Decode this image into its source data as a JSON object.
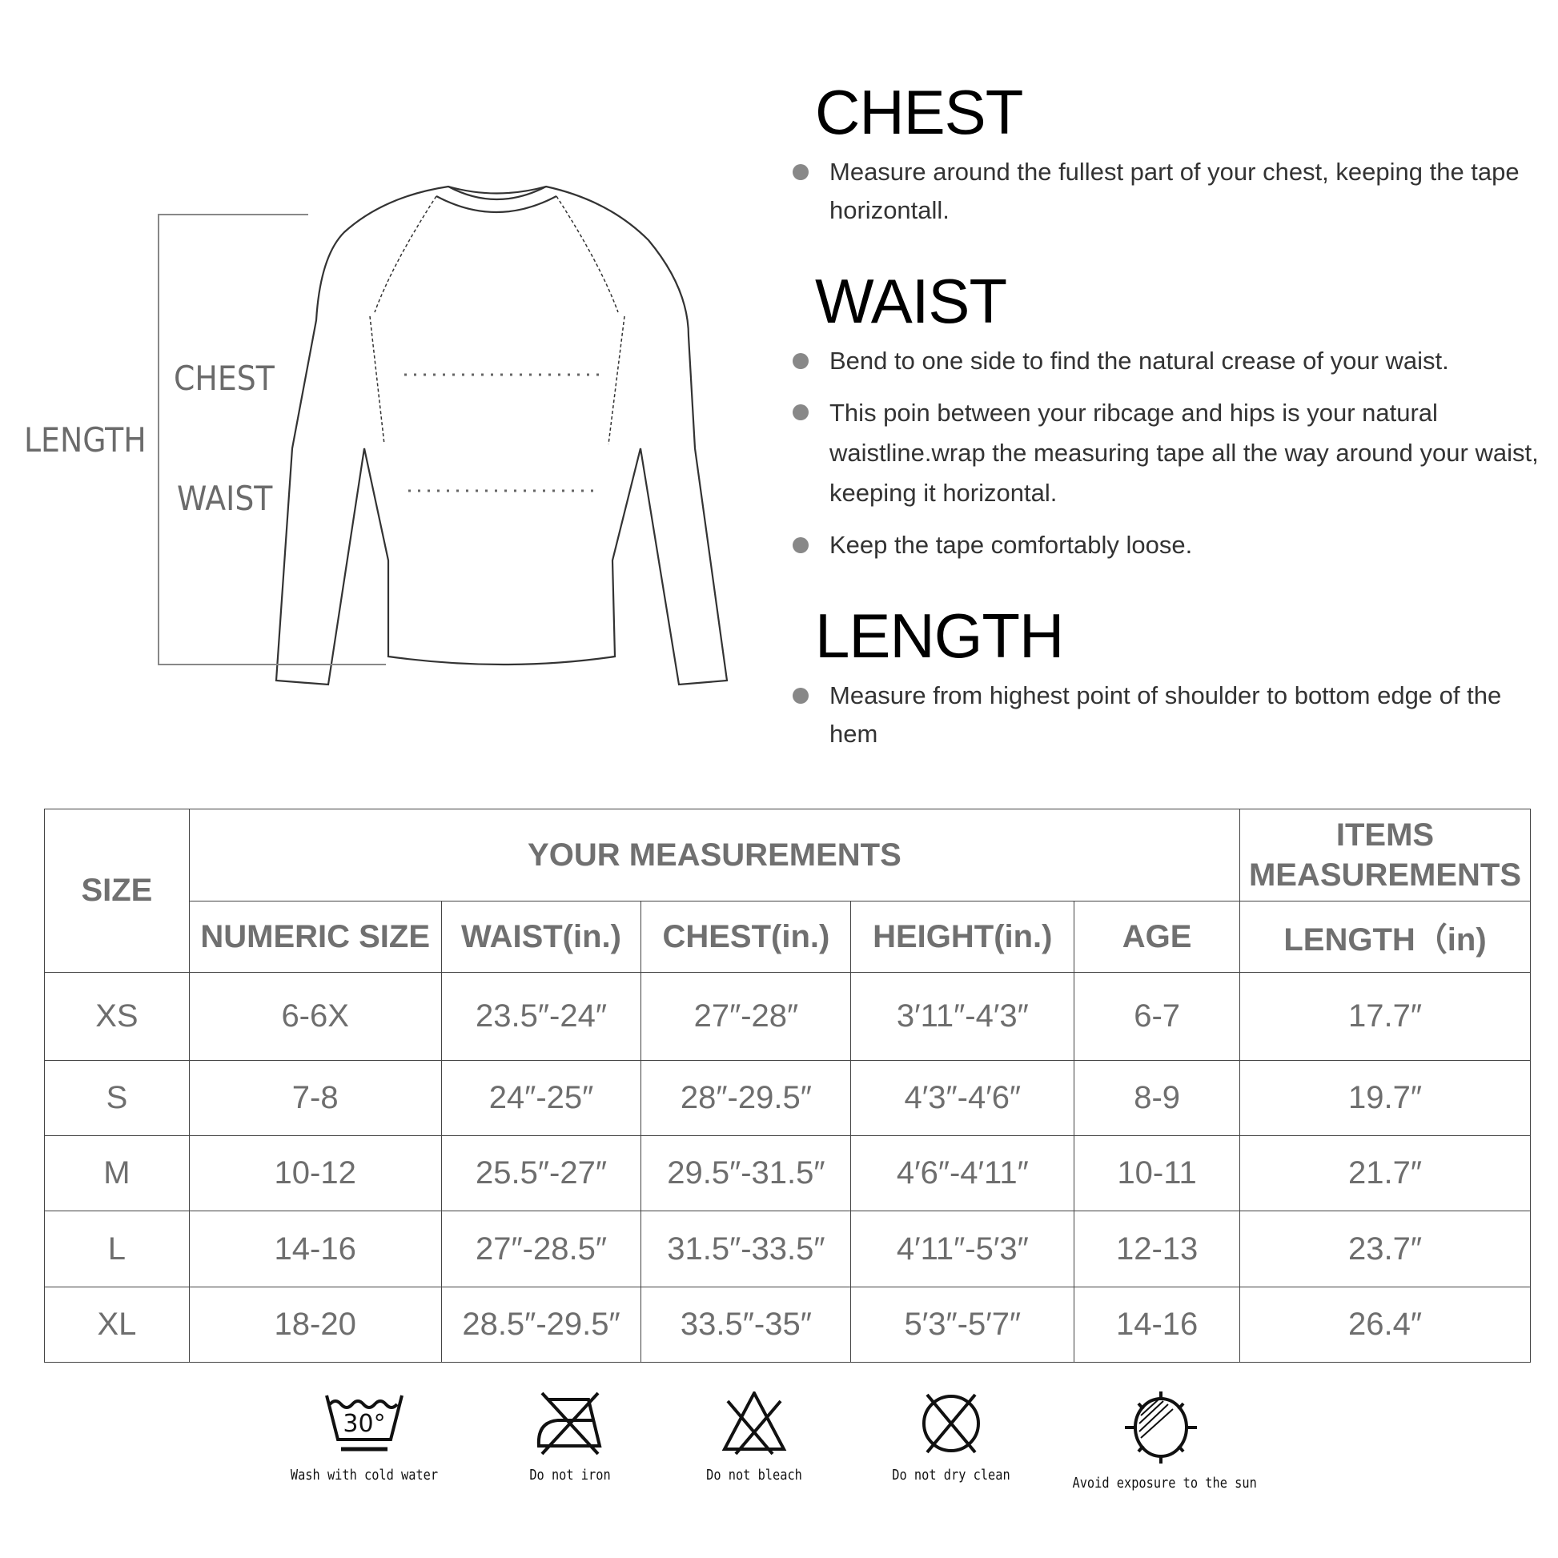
{
  "diagram": {
    "length_label": "LENGTH",
    "chest_label": "CHEST",
    "waist_label": "WAIST"
  },
  "sections": [
    {
      "title": "CHEST",
      "bullets": [
        "Measure around the fullest part of your chest, keeping the tape horizontall."
      ]
    },
    {
      "title": "WAIST",
      "bullets": [
        "Bend to one side to find the natural crease of your waist.",
        "This poin between your ribcage and hips is your natural waistline.wrap the measuring tape all the way around your waist, keeping it horizontal.",
        "Keep the tape comfortably loose."
      ]
    },
    {
      "title": "LENGTH",
      "bullets": [
        "Measure from highest point of shoulder to bottom edge of the hem"
      ]
    }
  ],
  "table": {
    "size_header": "SIZE",
    "group1": "YOUR MEASUREMENTS",
    "group2": "ITEMS MEASUREMENTS",
    "columns": [
      "NUMERIC SIZE",
      "WAIST(in.)",
      "CHEST(in.)",
      "HEIGHT(in.)",
      "AGE",
      "LENGTH（in)"
    ],
    "rows": [
      [
        "XS",
        "6-6X",
        "23.5″-24″",
        "27″-28″",
        "3′11″-4′3″",
        "6-7",
        "17.7″"
      ],
      [
        "S",
        "7-8",
        "24″-25″",
        "28″-29.5″",
        "4′3″-4′6″",
        "8-9",
        "19.7″"
      ],
      [
        "M",
        "10-12",
        "25.5″-27″",
        "29.5″-31.5″",
        "4′6″-4′11″",
        "10-11",
        "21.7″"
      ],
      [
        "L",
        "14-16",
        "27″-28.5″",
        "31.5″-33.5″",
        "4′11″-5′3″",
        "12-13",
        "23.7″"
      ],
      [
        "XL",
        "18-20",
        "28.5″-29.5″",
        "33.5″-35″",
        "5′3″-5′7″",
        "14-16",
        "26.4″"
      ]
    ]
  },
  "care": [
    {
      "icon": "wash-30-icon",
      "label": "Wash with cold water",
      "temp": "30°"
    },
    {
      "icon": "no-iron-icon",
      "label": "Do not iron"
    },
    {
      "icon": "no-bleach-icon",
      "label": "Do not bleach"
    },
    {
      "icon": "no-dry-clean-icon",
      "label": "Do not dry clean"
    },
    {
      "icon": "no-sun-icon",
      "label": "Avoid exposure to the sun"
    }
  ]
}
